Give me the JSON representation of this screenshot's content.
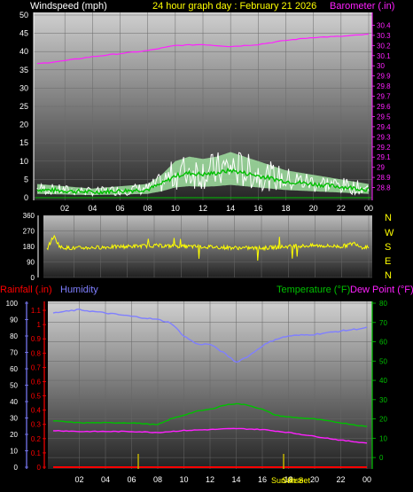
{
  "colors": {
    "background": "#000000",
    "windspeed": "#ffffff",
    "wind_avg": "#00c000",
    "wind_gust_fill": "#a0e0a0",
    "barometer": "#ff20ff",
    "direction": "#ffff00",
    "rainfall": "#ff0000",
    "humidity": "#7f7fff",
    "temperature": "#00c000",
    "dewpoint": "#ff20ff",
    "event_marker": "#c0b000",
    "header_windspeed": "#ffffff",
    "header_title": "#ffff00"
  },
  "header": {
    "windspeed_label": "Windspeed (mph)",
    "title": "24 hour graph day : February 21 2026",
    "barometer_label": "Barometer (.in)"
  },
  "lower_header": {
    "rainfall_label": "Rainfall (.in)",
    "humidity_label": "Humidity",
    "temperature_label": "Temperature (°F)",
    "dewpoint_label": "Dew Point (°F)"
  },
  "compass": [
    "N",
    "W",
    "S",
    "E",
    "N"
  ],
  "events": {
    "sunrise": "Sun Rise",
    "sunset": "Sun Set"
  },
  "chart_data": [
    {
      "id": "wind_barometer",
      "type": "line",
      "x_ticks": [
        "02",
        "04",
        "06",
        "08",
        "10",
        "12",
        "14",
        "16",
        "18",
        "20",
        "22",
        "00"
      ],
      "x_range_hours": [
        0,
        24
      ],
      "y_left": {
        "label": "Windspeed (mph)",
        "range": [
          0,
          50
        ],
        "ticks": [
          "0",
          "5",
          "10",
          "15",
          "20",
          "25",
          "30",
          "35",
          "40",
          "45",
          "50"
        ]
      },
      "y_right": {
        "label": "Barometer (.in)",
        "range": [
          28.7,
          30.5
        ],
        "ticks": [
          "28.8",
          "28.9",
          "29",
          "29.1",
          "29.2",
          "29.3",
          "29.4",
          "29.5",
          "29.6",
          "29.7",
          "29.8",
          "29.9",
          "30",
          "30.1",
          "30.2",
          "30.3",
          "30.4"
        ]
      },
      "series": [
        {
          "name": "Windspeed (mph)",
          "axis": "left",
          "hours": [
            0,
            2,
            4,
            6,
            8,
            9,
            10,
            11,
            12,
            13,
            14,
            15,
            16,
            17,
            18,
            20,
            22,
            24
          ],
          "values": [
            3,
            2.5,
            2,
            2.5,
            3,
            5,
            8,
            9,
            8.5,
            9,
            10,
            9,
            8,
            7,
            6,
            5,
            4,
            3
          ]
        },
        {
          "name": "Barometer (.in)",
          "axis": "right",
          "hours": [
            0,
            2,
            4,
            6,
            8,
            10,
            12,
            14,
            16,
            18,
            20,
            22,
            24
          ],
          "values": [
            30.02,
            30.05,
            30.09,
            30.12,
            30.15,
            30.2,
            30.21,
            30.19,
            30.21,
            30.25,
            30.28,
            30.29,
            30.31
          ]
        }
      ]
    },
    {
      "id": "direction",
      "type": "line",
      "y_ticks": [
        "360",
        "270",
        "180",
        "90",
        "0"
      ],
      "y_range": [
        0,
        360
      ],
      "series": [
        {
          "name": "Wind Direction",
          "hours": [
            0,
            0.5,
            1,
            2,
            4,
            6,
            8,
            10,
            12,
            14,
            16,
            18,
            20,
            22,
            23,
            23.5,
            24
          ],
          "values": [
            165,
            240,
            175,
            170,
            175,
            180,
            185,
            180,
            178,
            172,
            170,
            180,
            185,
            180,
            200,
            175,
            180
          ]
        }
      ]
    },
    {
      "id": "temp_humidity_rain",
      "type": "line",
      "x_ticks": [
        "02",
        "04",
        "06",
        "08",
        "10",
        "12",
        "14",
        "16",
        "18",
        "20",
        "22",
        "00"
      ],
      "y_humidity": {
        "label": "Humidity",
        "range": [
          0,
          100
        ],
        "ticks": [
          "0",
          "10",
          "20",
          "30",
          "40",
          "50",
          "60",
          "70",
          "80",
          "90",
          "100"
        ]
      },
      "y_rain": {
        "label": "Rainfall (.in)",
        "range": [
          0,
          1.15
        ],
        "ticks": [
          "0",
          "0.1",
          "0.2",
          "0.3",
          "0.4",
          "0.5",
          "0.6",
          "0.7",
          "0.8",
          "0.9",
          "1",
          "1.1"
        ]
      },
      "y_temp": {
        "label": "Temperature (°F)",
        "range": [
          -5,
          80
        ],
        "ticks": [
          "0",
          "10",
          "20",
          "30",
          "40",
          "50",
          "60",
          "70",
          "80"
        ]
      },
      "series": [
        {
          "name": "Humidity",
          "axis": "humidity",
          "hours": [
            0,
            2,
            4,
            6,
            8,
            9,
            10,
            11,
            12,
            13,
            14,
            15,
            16,
            17,
            18,
            20,
            22,
            24
          ],
          "values": [
            94,
            96,
            94,
            92,
            90,
            88,
            80,
            75,
            75,
            70,
            64,
            68,
            74,
            78,
            80,
            81,
            83,
            85
          ]
        },
        {
          "name": "Temperature (°F)",
          "axis": "temp",
          "hours": [
            0,
            2,
            4,
            6,
            8,
            9,
            10,
            11,
            12,
            13,
            14,
            15,
            16,
            17,
            18,
            20,
            22,
            24
          ],
          "values": [
            19,
            18,
            18,
            18,
            17,
            20,
            22,
            24,
            25,
            27,
            28,
            27,
            25,
            22,
            21,
            20,
            18,
            16
          ]
        },
        {
          "name": "Dew Point (°F)",
          "axis": "temp",
          "hours": [
            0,
            2,
            4,
            6,
            8,
            10,
            12,
            14,
            16,
            18,
            20,
            22,
            24
          ],
          "values": [
            14,
            13.5,
            13.5,
            13.5,
            13,
            14,
            14.5,
            15,
            14.5,
            13,
            11,
            9,
            7.5
          ]
        },
        {
          "name": "Rainfall (.in)",
          "axis": "rain",
          "hours": [
            0,
            24
          ],
          "values": [
            0,
            0
          ]
        }
      ]
    }
  ]
}
